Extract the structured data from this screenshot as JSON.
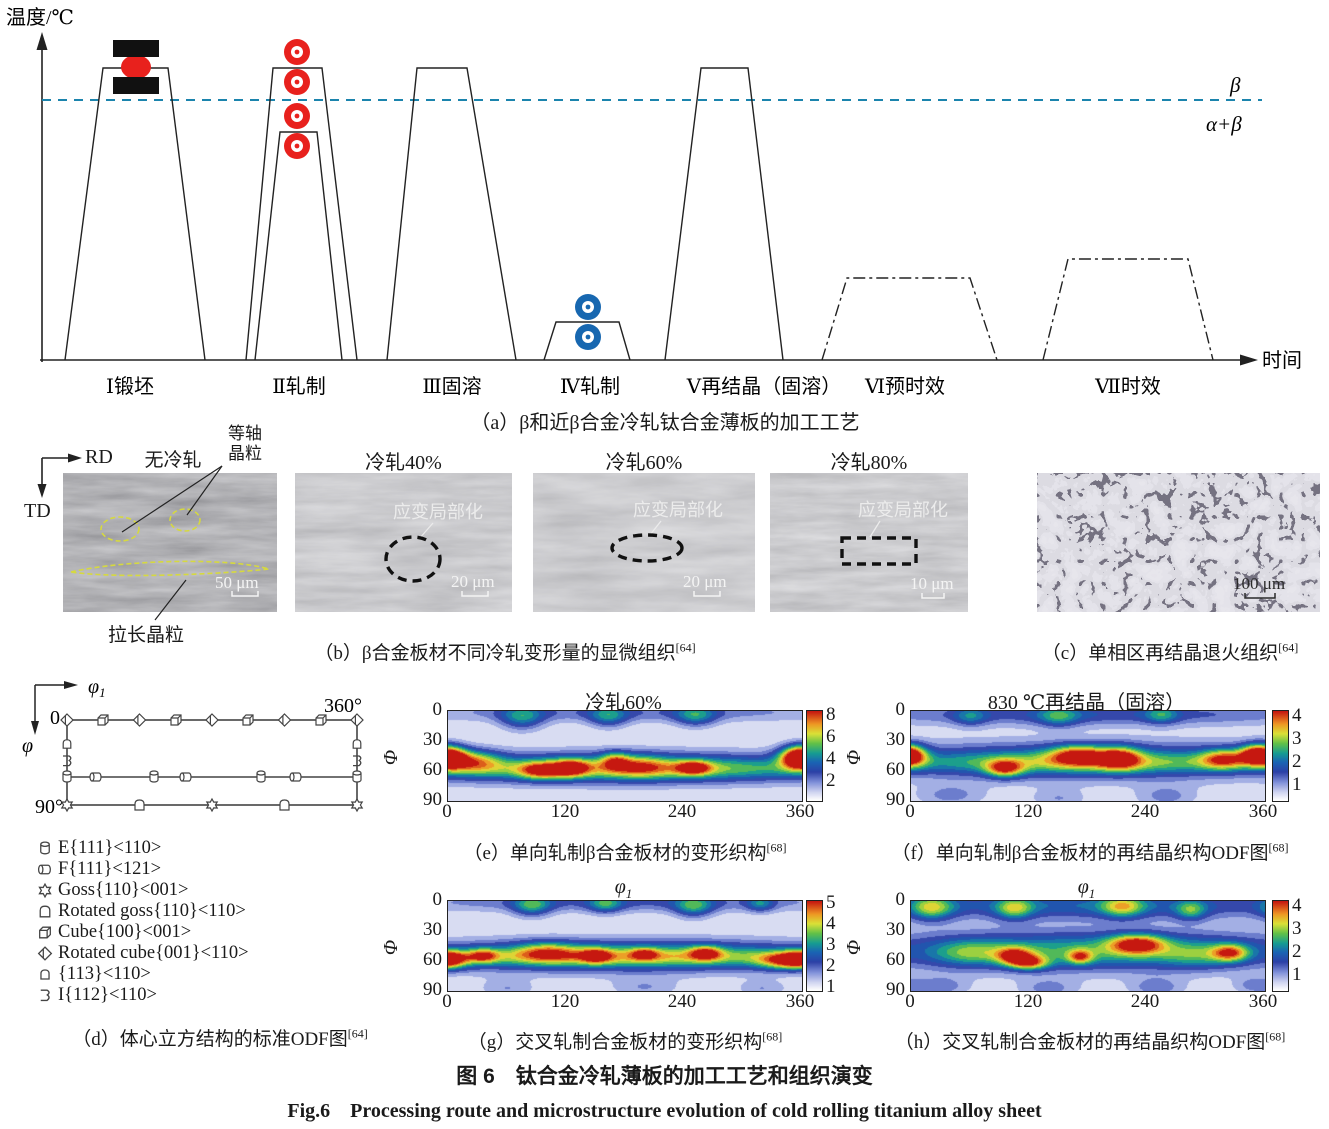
{
  "panel_a": {
    "y_axis": "温度/℃",
    "x_axis": "时间",
    "beta_label": "β",
    "alpha_beta_label": "α+β",
    "steps": [
      "Ⅰ锻坯",
      "Ⅱ轧制",
      "Ⅲ固溶",
      "Ⅳ轧制",
      "Ⅴ再结晶（固溶）",
      "Ⅵ预时效",
      "Ⅶ时效"
    ],
    "caption": "（a）β和近β合金冷轧钛合金薄板的加工工艺",
    "colors": {
      "transus_line": "#1b84ad",
      "hot_roll": "#e8211d",
      "cold_roll": "#1767b0",
      "forge_die": "#111111"
    }
  },
  "panel_b": {
    "rd": "RD",
    "td": "TD",
    "label_no_rolling": "无冷轧",
    "label_equiaxed_line1": "等轴",
    "label_equiaxed_line2": "晶粒",
    "label_elongated": "拉长晶粒",
    "strain_localization": "应变局部化",
    "panels": [
      {
        "title": "",
        "scale": "50 μm"
      },
      {
        "title": "冷轧40%",
        "scale": "20 μm"
      },
      {
        "title": "冷轧60%",
        "scale": "20 μm"
      },
      {
        "title": "冷轧80%",
        "scale": "10 μm"
      }
    ],
    "caption": "（b）β合金板材不同冷轧变形量的显微组织",
    "caption_ref": "[64]",
    "annotation_color": "#d6d93f"
  },
  "panel_c": {
    "scale": "100 μm",
    "caption": "（c）单相区再结晶退火组织",
    "caption_ref": "[64]"
  },
  "panel_d": {
    "axis_phi1": "φ",
    "axis_phi1_sub": "1",
    "axis_phi": "φ",
    "tick_zero": "0",
    "tick_360": "360°",
    "tick_90": "90°",
    "legend": [
      {
        "icon": "cylinder-upright",
        "label": "E{111}<110>"
      },
      {
        "icon": "cylinder-lying",
        "label": "F{111}<121>"
      },
      {
        "icon": "star",
        "label": "Goss{110}<001>"
      },
      {
        "icon": "arch",
        "label": "Rotated goss{110}<110>"
      },
      {
        "icon": "cube",
        "label": "Cube{100}<001>"
      },
      {
        "icon": "diamond",
        "label": "Rotated cube{001}<110>"
      },
      {
        "icon": "arch-small",
        "label": "{113}<110>"
      },
      {
        "icon": "hook",
        "label": "I{112}<110>"
      }
    ],
    "caption": "（d）体心立方结构的标准ODF图",
    "caption_ref": "[64]"
  },
  "chart_data": [
    {
      "id": "e",
      "type": "heatmap",
      "title": "冷轧60%",
      "title_sub": "",
      "ylabel": "Φ",
      "xlim": [
        0,
        360
      ],
      "ylim": [
        0,
        90
      ],
      "x_ticks": [
        "0",
        "120",
        "240",
        "360"
      ],
      "y_ticks": [
        "0",
        "30",
        "60",
        "90"
      ],
      "colorbar_ticks": [
        "8",
        "6",
        "4",
        "2"
      ],
      "colorbar_range": [
        0,
        9
      ],
      "caption": "（e）单向轧制β合金板材的变形织构",
      "caption_ref": "[68]",
      "description": "deformation texture band, max intensity ~8 at Φ≈45–60° across φ1 0–360°",
      "blobs": [
        [
          180,
          57,
          170,
          11,
          0.55
        ],
        [
          180,
          58,
          170,
          7,
          0.2
        ],
        [
          0,
          47,
          16,
          8,
          0.62
        ],
        [
          30,
          50,
          18,
          8,
          0.42
        ],
        [
          95,
          60,
          16,
          6,
          0.52
        ],
        [
          125,
          57,
          12,
          6,
          0.55
        ],
        [
          170,
          49,
          10,
          6,
          0.4
        ],
        [
          195,
          55,
          20,
          8,
          0.3
        ],
        [
          250,
          57,
          12,
          5,
          0.55
        ],
        [
          358,
          45,
          12,
          8,
          0.62
        ],
        [
          75,
          6,
          16,
          9,
          0.38
        ],
        [
          163,
          5,
          14,
          8,
          0.34
        ],
        [
          252,
          4,
          15,
          8,
          0.36
        ],
        [
          180,
          1,
          180,
          7,
          0.22
        ]
      ]
    },
    {
      "id": "f",
      "type": "heatmap",
      "title": "830 ℃再结晶（固溶）",
      "title_sub": "",
      "ylabel": "Φ",
      "xlim": [
        0,
        360
      ],
      "ylim": [
        0,
        90
      ],
      "x_ticks": [
        "0",
        "120",
        "240",
        "360"
      ],
      "y_ticks": [
        "0",
        "30",
        "60",
        "90"
      ],
      "colorbar_ticks": [
        "4",
        "3",
        "2",
        "1"
      ],
      "colorbar_range": [
        0,
        4.5
      ],
      "caption": "（f）单向轧制β合金板材的再结晶织构ODF图",
      "caption_ref": "[68]",
      "description": "recrystallization texture band, max ~4 at Φ≈40–60°, strong cluster at φ1≈160–230°",
      "blobs": [
        [
          180,
          50,
          170,
          13,
          0.5
        ],
        [
          180,
          52,
          170,
          7,
          0.2
        ],
        [
          0,
          45,
          12,
          8,
          0.6
        ],
        [
          95,
          58,
          13,
          6,
          0.6
        ],
        [
          170,
          44,
          20,
          7,
          0.62
        ],
        [
          212,
          47,
          15,
          8,
          0.62
        ],
        [
          318,
          48,
          16,
          7,
          0.55
        ],
        [
          350,
          43,
          12,
          7,
          0.58
        ],
        [
          180,
          3,
          180,
          8,
          0.3
        ],
        [
          150,
          5,
          15,
          8,
          0.3
        ],
        [
          255,
          3,
          12,
          7,
          0.28
        ],
        [
          60,
          5,
          12,
          7,
          0.25
        ],
        [
          40,
          85,
          25,
          8,
          0.18
        ],
        [
          150,
          88,
          20,
          7,
          0.15
        ],
        [
          260,
          86,
          22,
          8,
          0.18
        ]
      ]
    },
    {
      "id": "g",
      "type": "heatmap",
      "title": "φ",
      "title_sub": "1",
      "ylabel": "Φ",
      "xlim": [
        0,
        360
      ],
      "ylim": [
        0,
        90
      ],
      "x_ticks": [
        "0",
        "120",
        "240",
        "360"
      ],
      "y_ticks": [
        "0",
        "30",
        "60",
        "90"
      ],
      "colorbar_ticks": [
        "5",
        "4",
        "3",
        "2",
        "1"
      ],
      "colorbar_range": [
        0,
        5.5
      ],
      "caption": "（g）交叉轧制合金板材的变形织构",
      "caption_ref": "[68]",
      "description": "cross-rolled deformation texture, continuous yellow-green band at Φ≈50–60°, max ~5 near φ1≈345°",
      "blobs": [
        [
          180,
          55,
          170,
          11,
          0.6
        ],
        [
          180,
          56,
          170,
          6,
          0.2
        ],
        [
          0,
          58,
          12,
          6,
          0.55
        ],
        [
          35,
          55,
          11,
          5,
          0.5
        ],
        [
          100,
          51,
          22,
          7,
          0.4
        ],
        [
          150,
          55,
          10,
          5,
          0.5
        ],
        [
          200,
          53,
          9,
          4,
          0.42
        ],
        [
          262,
          52,
          11,
          5,
          0.52
        ],
        [
          345,
          60,
          20,
          6,
          0.62
        ],
        [
          85,
          4,
          14,
          8,
          0.4
        ],
        [
          160,
          2,
          12,
          7,
          0.34
        ],
        [
          250,
          5,
          14,
          8,
          0.4
        ],
        [
          318,
          2,
          10,
          6,
          0.3
        ],
        [
          180,
          1,
          180,
          7,
          0.25
        ],
        [
          60,
          88,
          20,
          7,
          0.15
        ],
        [
          200,
          87,
          25,
          7,
          0.15
        ],
        [
          320,
          88,
          18,
          6,
          0.15
        ]
      ]
    },
    {
      "id": "h",
      "type": "heatmap",
      "title": "φ",
      "title_sub": "1",
      "ylabel": "Φ",
      "xlim": [
        0,
        360
      ],
      "ylim": [
        0,
        90
      ],
      "x_ticks": [
        "0",
        "120",
        "240",
        "360"
      ],
      "y_ticks": [
        "0",
        "30",
        "60",
        "90"
      ],
      "colorbar_ticks": [
        "4",
        "3",
        "2",
        "1"
      ],
      "colorbar_range": [
        0,
        4.5
      ],
      "caption": "（h）交叉轧制合金板材的再结晶织构ODF图",
      "caption_ref": "[68]",
      "description": "cross-rolled recrystallization texture, green band at Φ≈40–65° with red spots at φ1≈105–120°, 230°, 325°",
      "blobs": [
        [
          180,
          50,
          170,
          14,
          0.55
        ],
        [
          180,
          4,
          180,
          10,
          0.38
        ],
        [
          20,
          6,
          16,
          9,
          0.5
        ],
        [
          105,
          7,
          13,
          8,
          0.42
        ],
        [
          215,
          5,
          15,
          8,
          0.45
        ],
        [
          285,
          9,
          11,
          7,
          0.35
        ],
        [
          105,
          55,
          13,
          6,
          0.58
        ],
        [
          120,
          62,
          14,
          5,
          0.6
        ],
        [
          172,
          56,
          9,
          5,
          0.5
        ],
        [
          230,
          43,
          20,
          7,
          0.68
        ],
        [
          325,
          52,
          13,
          6,
          0.58
        ],
        [
          60,
          52,
          25,
          9,
          0.25
        ],
        [
          290,
          55,
          25,
          9,
          0.2
        ],
        [
          30,
          86,
          20,
          7,
          0.2
        ],
        [
          140,
          88,
          22,
          7,
          0.18
        ],
        [
          250,
          87,
          20,
          7,
          0.2
        ],
        [
          350,
          85,
          15,
          6,
          0.18
        ]
      ]
    }
  ],
  "figure": {
    "title_zh": "图 6　钛合金冷轧薄板的加工工艺和组织演变",
    "title_en": "Fig.6　Processing route and microstructure evolution of cold rolling titanium alloy sheet"
  }
}
